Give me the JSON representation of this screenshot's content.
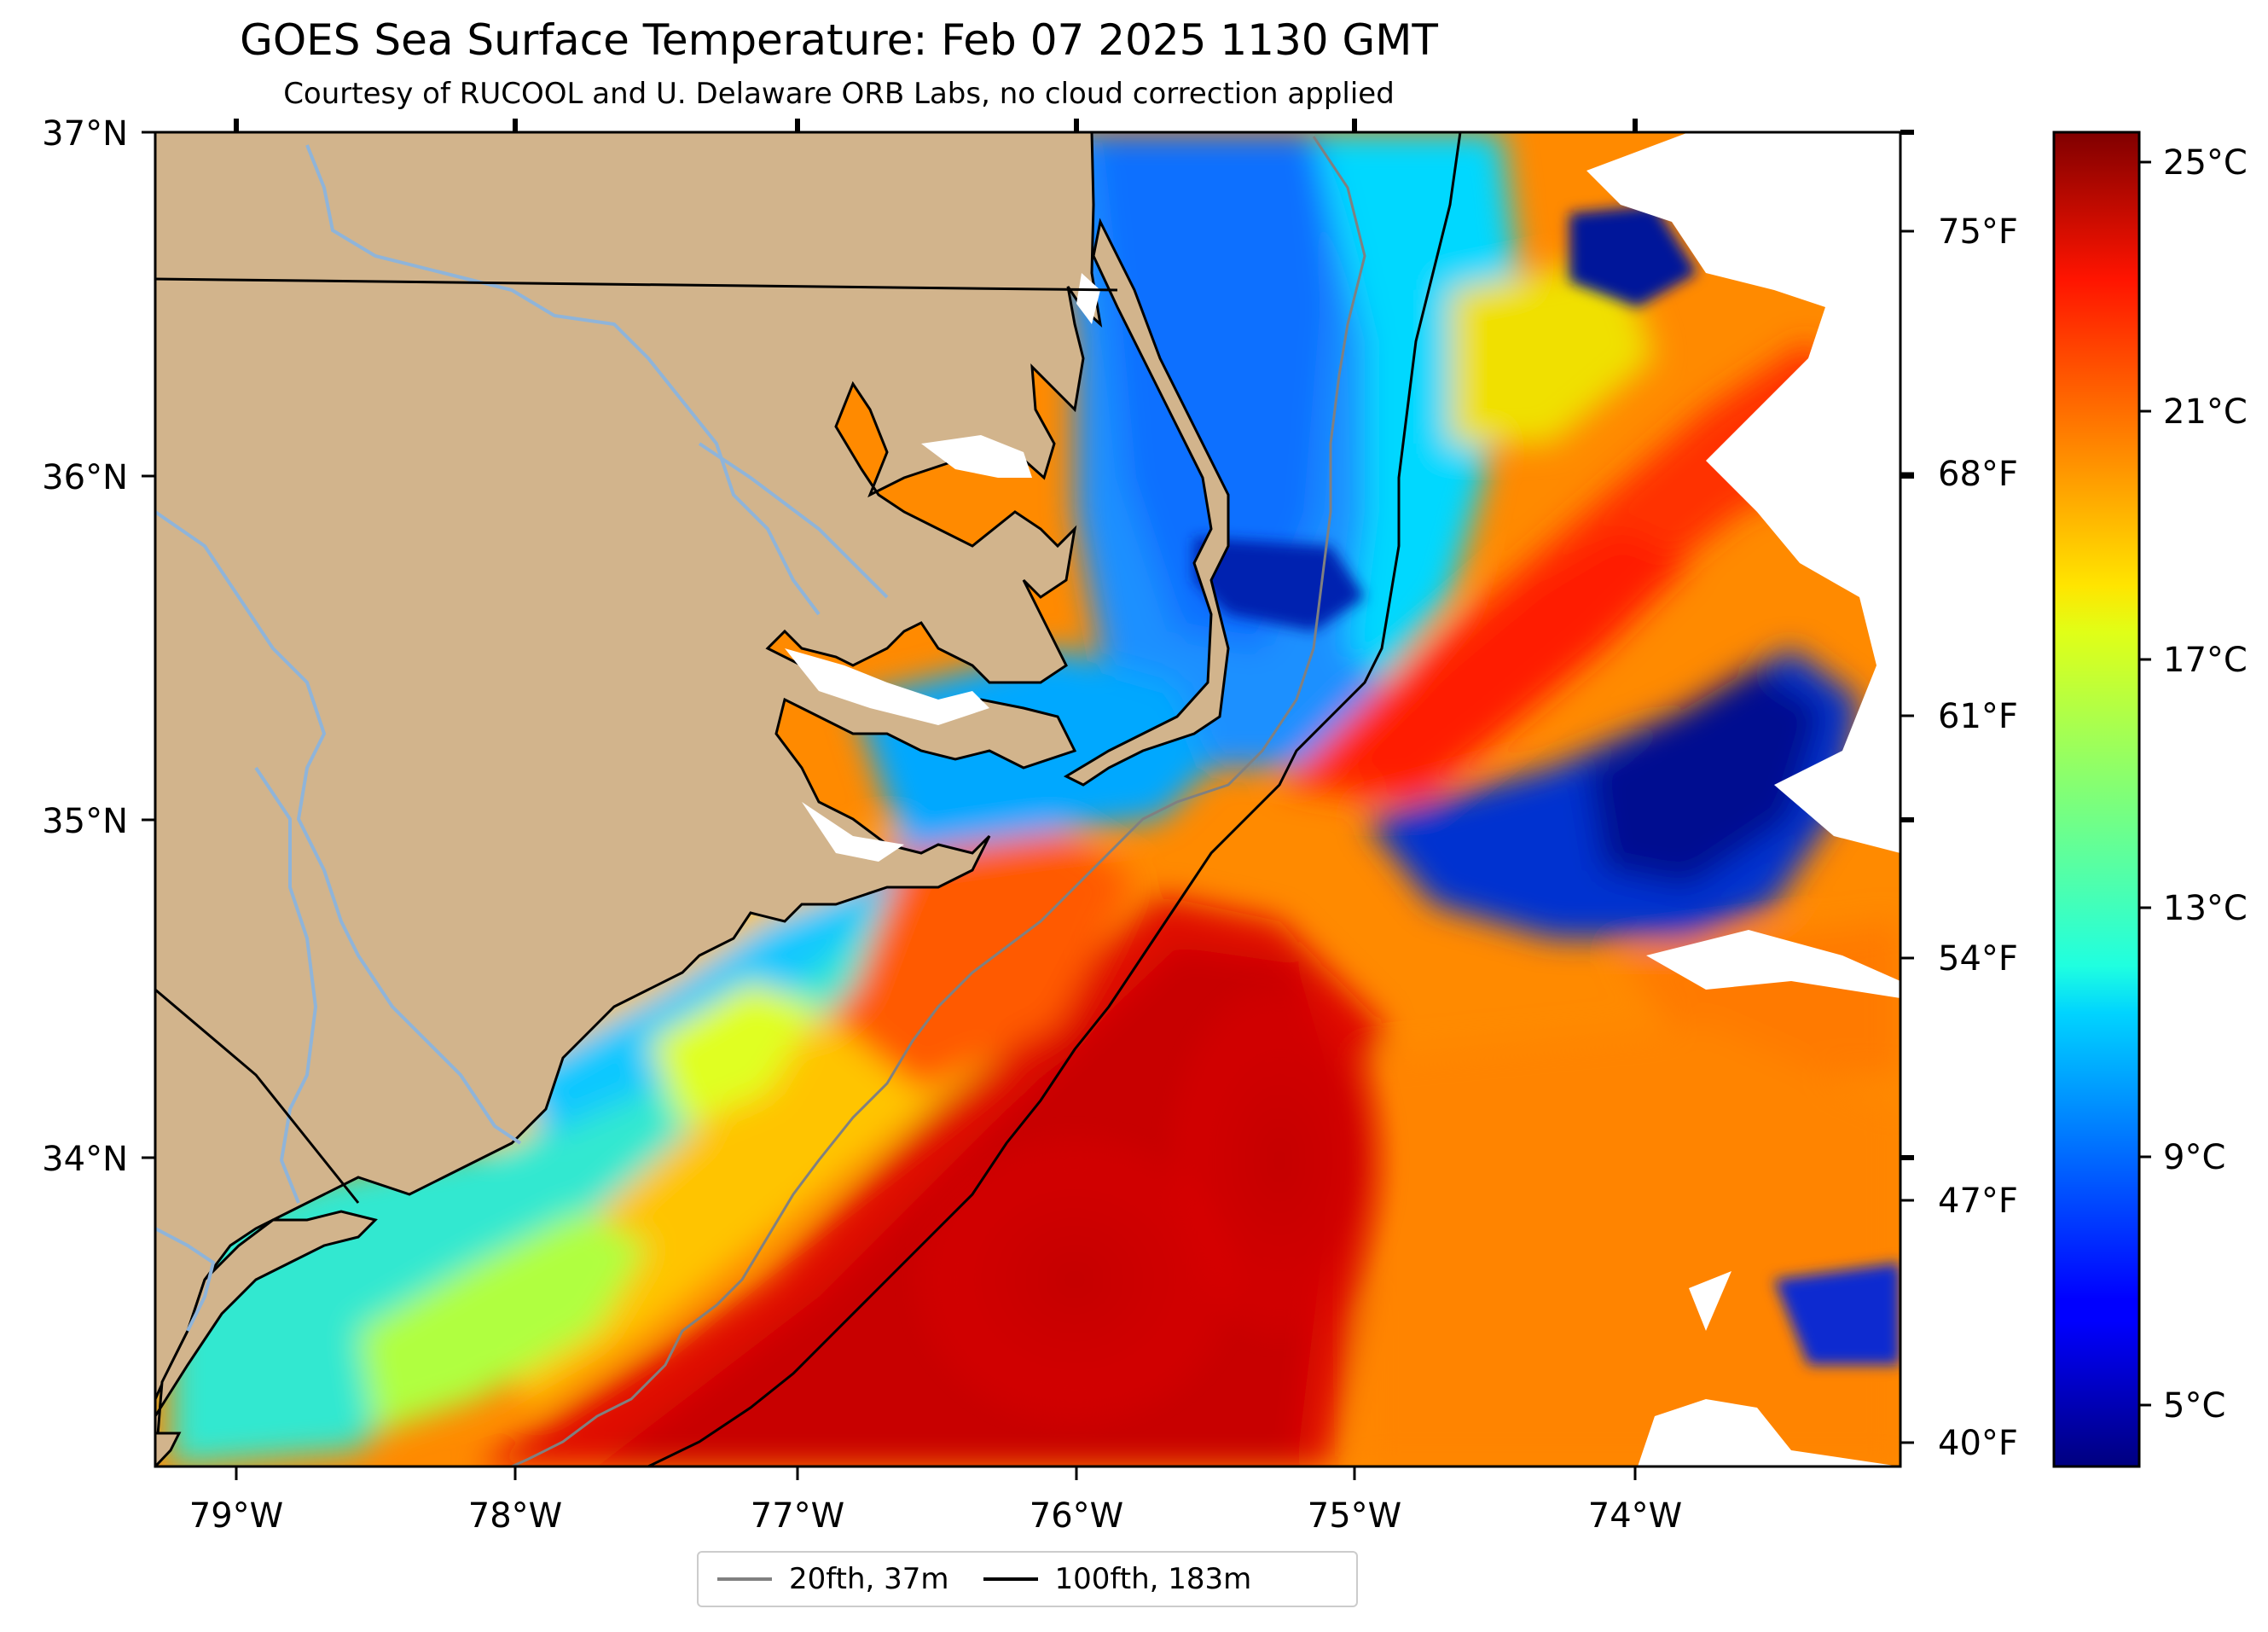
{
  "title": "GOES Sea Surface Temperature: Feb 07 2025 1130 GMT",
  "subtitle": "Courtesy of RUCOOL and U. Delaware ORB Labs, no cloud correction applied",
  "map": {
    "lon_range": [
      -79.28,
      -73.08
    ],
    "lat_range": [
      33.14,
      37.0
    ],
    "lat_labels": [
      "37°N",
      "36°N",
      "35°N",
      "34°N"
    ],
    "lon_labels": [
      "79°W",
      "78°W",
      "77°W",
      "76°W",
      "75°W",
      "74°W"
    ],
    "f_labels": [
      "75°F",
      "68°F",
      "61°F",
      "54°F",
      "47°F",
      "40°F"
    ],
    "land_color": "#d2b48c",
    "river_color": "#8fb4d9",
    "no_data_color": "#ffffff"
  },
  "colorbar": {
    "ticks": [
      "25°C",
      "21°C",
      "17°C",
      "13°C",
      "9°C",
      "5°C"
    ],
    "colormap": "jet",
    "range_c": [
      3.6,
      25.6
    ]
  },
  "legend": {
    "items": [
      {
        "label": "20fth, 37m",
        "color": "#808080"
      },
      {
        "label": "100fth, 183m",
        "color": "#000000"
      }
    ]
  }
}
